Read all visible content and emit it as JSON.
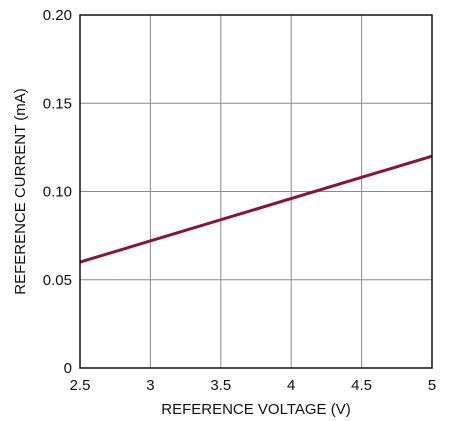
{
  "chart_data": {
    "type": "line",
    "title": "",
    "xlabel": "REFERENCE VOLTAGE (V)",
    "ylabel": "REFERENCE CURRENT (mA)",
    "xlim": [
      2.5,
      5
    ],
    "ylim": [
      0,
      0.2
    ],
    "x_ticks": [
      2.5,
      3,
      3.5,
      4,
      4.5,
      5
    ],
    "x_tick_labels": [
      "2.5",
      "3",
      "3.5",
      "4",
      "4.5",
      "5"
    ],
    "y_ticks": [
      0,
      0.05,
      0.1,
      0.15,
      0.2
    ],
    "y_tick_labels": [
      "0",
      "0.05",
      "0.10",
      "0.15",
      "0.20"
    ],
    "grid": true,
    "series": [
      {
        "color": "#8b1530",
        "x": [
          2.5,
          5
        ],
        "y": [
          0.06,
          0.12
        ]
      }
    ]
  }
}
